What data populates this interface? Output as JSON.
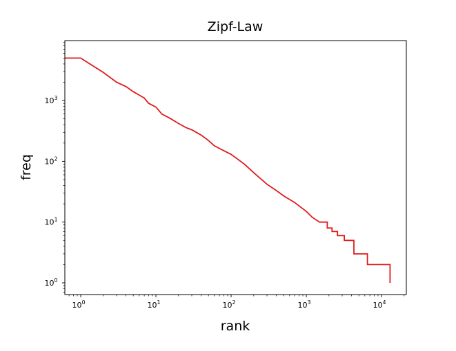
{
  "chart_data": {
    "type": "line",
    "title": "Zipf-Law",
    "xlabel": "rank",
    "ylabel": "freq",
    "xscale": "log",
    "yscale": "log",
    "xlim": [
      0.6,
      20000
    ],
    "ylim": [
      0.65,
      8500
    ],
    "grid": false,
    "legend": null,
    "x_ticks": [
      {
        "base": "10",
        "exp": "0",
        "value": 1
      },
      {
        "base": "10",
        "exp": "1",
        "value": 10
      },
      {
        "base": "10",
        "exp": "2",
        "value": 100
      },
      {
        "base": "10",
        "exp": "3",
        "value": 1000
      },
      {
        "base": "10",
        "exp": "4",
        "value": 10000
      }
    ],
    "y_ticks": [
      {
        "base": "10",
        "exp": "0",
        "value": 1
      },
      {
        "base": "10",
        "exp": "1",
        "value": 10
      },
      {
        "base": "10",
        "exp": "2",
        "value": 100
      },
      {
        "base": "10",
        "exp": "3",
        "value": 1000
      }
    ],
    "series": [
      {
        "name": "freq",
        "color": "#e0191b",
        "x": [
          0.62,
          1,
          2,
          3,
          4,
          5,
          7,
          8,
          10,
          12,
          15,
          20,
          25,
          30,
          40,
          50,
          60,
          80,
          100,
          150,
          200,
          300,
          400,
          500,
          700,
          1000,
          1200,
          1500,
          1900,
          2200,
          2600,
          3200,
          4300,
          6500,
          13000
        ],
        "y": [
          5000,
          5000,
          2900,
          2000,
          1700,
          1400,
          1100,
          900,
          780,
          600,
          520,
          420,
          360,
          330,
          270,
          220,
          180,
          150,
          130,
          90,
          65,
          42,
          33,
          27,
          21,
          15,
          12,
          10,
          8,
          7,
          6,
          5,
          3,
          2,
          1
        ]
      }
    ]
  }
}
